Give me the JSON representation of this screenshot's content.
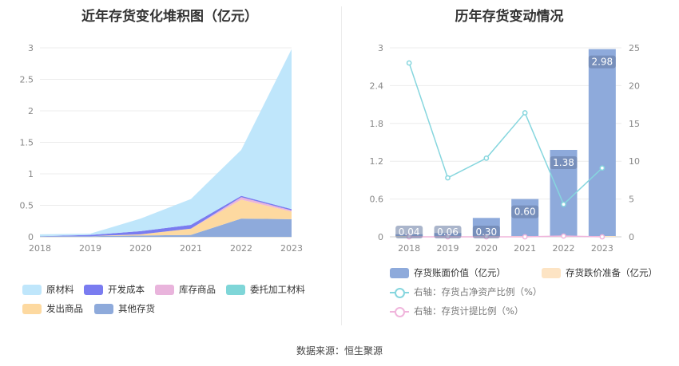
{
  "chart_data": [
    {
      "type": "area",
      "title": "近年存货变化堆积图（亿元）",
      "x": [
        "2018",
        "2019",
        "2020",
        "2021",
        "2022",
        "2023"
      ],
      "ylim": [
        0,
        3
      ],
      "yticks": [
        "0",
        "0.5",
        "1",
        "1.5",
        "2",
        "2.5",
        "3"
      ],
      "grid": true,
      "legend_position": "bottom",
      "series": [
        {
          "name": "其他存货",
          "color": "#8eaadb",
          "values": [
            0.01,
            0.01,
            0.02,
            0.03,
            0.29,
            0.28
          ]
        },
        {
          "name": "发出商品",
          "color": "#fdd9a0",
          "values": [
            0.0,
            0.0,
            0.02,
            0.1,
            0.3,
            0.12
          ]
        },
        {
          "name": "委托加工材料",
          "color": "#7fd6d8",
          "values": [
            0.0,
            0.0,
            0.0,
            0.0,
            0.0,
            0.0
          ]
        },
        {
          "name": "库存商品",
          "color": "#e9b4dc",
          "values": [
            0.0,
            0.0,
            0.0,
            0.0,
            0.04,
            0.02
          ]
        },
        {
          "name": "开发成本",
          "color": "#7a7cf0",
          "values": [
            0.0,
            0.02,
            0.05,
            0.06,
            0.02,
            0.02
          ]
        },
        {
          "name": "原材料",
          "color": "#bfe6fb",
          "values": [
            0.03,
            0.02,
            0.2,
            0.41,
            0.73,
            2.54
          ]
        }
      ],
      "legend_order": [
        "原材料",
        "开发成本",
        "库存商品",
        "委托加工材料",
        "发出商品",
        "其他存货"
      ]
    },
    {
      "type": "bar",
      "title": "历年存货变动情况",
      "categories": [
        "2018",
        "2019",
        "2020",
        "2021",
        "2022",
        "2023"
      ],
      "ylim": [
        0,
        3
      ],
      "yticks": [
        "0",
        "0.6",
        "1.2",
        "1.8",
        "2.4",
        "3"
      ],
      "y2lim": [
        0,
        25
      ],
      "y2ticks": [
        "0",
        "5",
        "10",
        "15",
        "20",
        "25"
      ],
      "grid": true,
      "legend_position": "bottom",
      "series": [
        {
          "name": "存货账面价值（亿元）",
          "kind": "bar",
          "axis": "left",
          "color": "#8eaadb",
          "values": [
            0.04,
            0.06,
            0.3,
            0.6,
            1.38,
            2.98
          ],
          "labels": [
            "0.04",
            "0.06",
            "0.30",
            "0.60",
            "1.38",
            "2.98"
          ]
        },
        {
          "name": "存货跌价准备（亿元）",
          "kind": "bar",
          "axis": "left",
          "color": "#fde4c4",
          "values": [
            0,
            0,
            0,
            0,
            0,
            0
          ]
        },
        {
          "name": "右轴：存货占净资产比例（%）",
          "kind": "line",
          "axis": "right",
          "color": "#86d6de",
          "values": [
            23.0,
            7.8,
            10.4,
            16.4,
            4.3,
            9.1
          ]
        },
        {
          "name": "右轴：存货计提比例（%）",
          "kind": "line",
          "axis": "right",
          "color": "#f0b5dc",
          "values": [
            0,
            0,
            0,
            0,
            0.1,
            0
          ]
        }
      ]
    }
  ],
  "source": "数据来源：恒生聚源"
}
